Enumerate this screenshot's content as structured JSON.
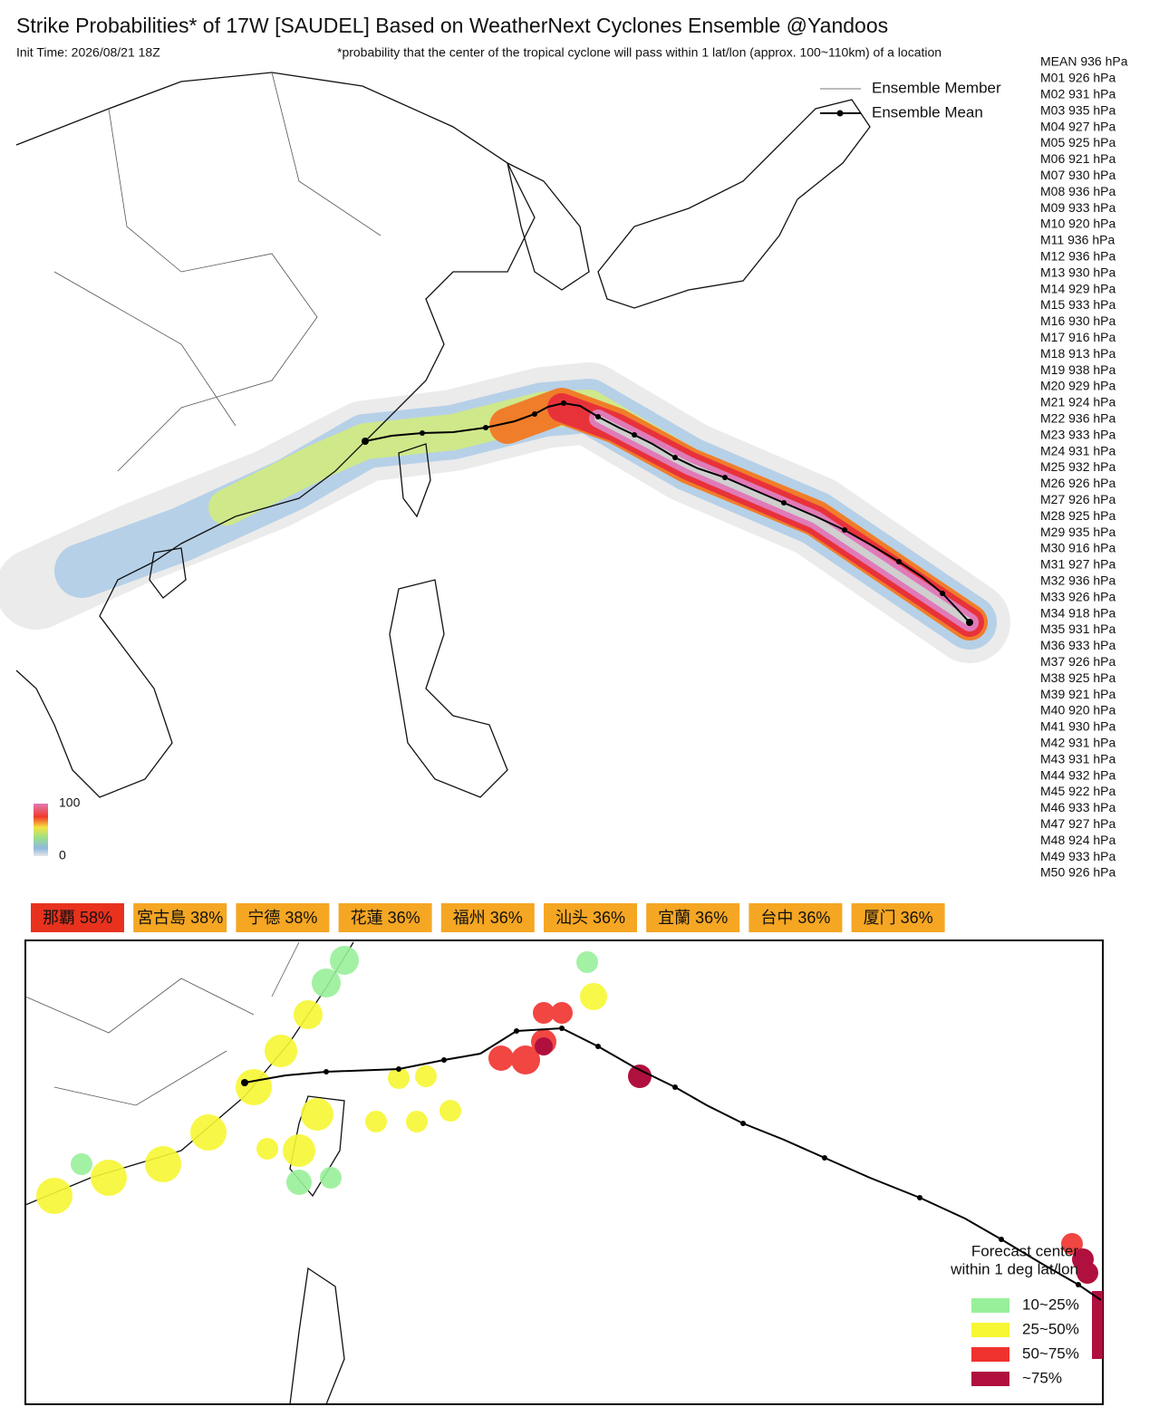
{
  "header": {
    "title": "Strike Probabilities* of 17W [SAUDEL] Based on WeatherNext Cyclones Ensemble  @Yandoos",
    "init_time": "Init Time: 2026/08/21 18Z",
    "note": "*probability that the center of the tropical cyclone will pass within 1 lat/lon (approx. 100~110km) of a location"
  },
  "map_legend": {
    "member": "Ensemble Member",
    "mean": "Ensemble Mean"
  },
  "colorbar": {
    "max_label": "100",
    "min_label": "0"
  },
  "members": [
    {
      "label": "MEAN 936 hPa",
      "color": "#c2305a"
    },
    {
      "label": "M01 926 hPa",
      "color": "#4a2777"
    },
    {
      "label": "M02 931 hPa",
      "color": "#c2305a"
    },
    {
      "label": "M03 935 hPa",
      "color": "#c2305a"
    },
    {
      "label": "M04 927 hPa",
      "color": "#4a2777"
    },
    {
      "label": "M05 925 hPa",
      "color": "#4a2777"
    },
    {
      "label": "M06 921 hPa",
      "color": "#4a2777"
    },
    {
      "label": "M07 930 hPa",
      "color": "#c2305a"
    },
    {
      "label": "M08 936 hPa",
      "color": "#c2305a"
    },
    {
      "label": "M09 933 hPa",
      "color": "#c2305a"
    },
    {
      "label": "M10 920 hPa",
      "color": "#4a2777"
    },
    {
      "label": "M11 936 hPa",
      "color": "#c2305a"
    },
    {
      "label": "M12 936 hPa",
      "color": "#c2305a"
    },
    {
      "label": "M13 930 hPa",
      "color": "#c2305a"
    },
    {
      "label": "M14 929 hPa",
      "color": "#4a2777"
    },
    {
      "label": "M15 933 hPa",
      "color": "#c2305a"
    },
    {
      "label": "M16 930 hPa",
      "color": "#c2305a"
    },
    {
      "label": "M17 916 hPa",
      "color": "#4a2777"
    },
    {
      "label": "M18 913 hPa",
      "color": "#4a2777"
    },
    {
      "label": "M19 938 hPa",
      "color": "#c2305a"
    },
    {
      "label": "M20 929 hPa",
      "color": "#4a2777"
    },
    {
      "label": "M21 924 hPa",
      "color": "#4a2777"
    },
    {
      "label": "M22 936 hPa",
      "color": "#c2305a"
    },
    {
      "label": "M23 933 hPa",
      "color": "#c2305a"
    },
    {
      "label": "M24 931 hPa",
      "color": "#c2305a"
    },
    {
      "label": "M25 932 hPa",
      "color": "#c2305a"
    },
    {
      "label": "M26 926 hPa",
      "color": "#4a2777"
    },
    {
      "label": "M27 926 hPa",
      "color": "#4a2777"
    },
    {
      "label": "M28 925 hPa",
      "color": "#4a2777"
    },
    {
      "label": "M29 935 hPa",
      "color": "#c2305a"
    },
    {
      "label": "M30 916 hPa",
      "color": "#4a2777"
    },
    {
      "label": "M31 927 hPa",
      "color": "#4a2777"
    },
    {
      "label": "M32 936 hPa",
      "color": "#c2305a"
    },
    {
      "label": "M33 926 hPa",
      "color": "#4a2777"
    },
    {
      "label": "M34 918 hPa",
      "color": "#4a2777"
    },
    {
      "label": "M35 931 hPa",
      "color": "#c2305a"
    },
    {
      "label": "M36 933 hPa",
      "color": "#c2305a"
    },
    {
      "label": "M37 926 hPa",
      "color": "#4a2777"
    },
    {
      "label": "M38 925 hPa",
      "color": "#4a2777"
    },
    {
      "label": "M39 921 hPa",
      "color": "#4a2777"
    },
    {
      "label": "M40 920 hPa",
      "color": "#4a2777"
    },
    {
      "label": "M41 930 hPa",
      "color": "#c2305a"
    },
    {
      "label": "M42 931 hPa",
      "color": "#c2305a"
    },
    {
      "label": "M43 931 hPa",
      "color": "#c2305a"
    },
    {
      "label": "M44 932 hPa",
      "color": "#c2305a"
    },
    {
      "label": "M45 922 hPa",
      "color": "#4a2777"
    },
    {
      "label": "M46 933 hPa",
      "color": "#c2305a"
    },
    {
      "label": "M47 927 hPa",
      "color": "#4a2777"
    },
    {
      "label": "M48 924 hPa",
      "color": "#4a2777"
    },
    {
      "label": "M49 933 hPa",
      "color": "#c2305a"
    },
    {
      "label": "M50 926 hPa",
      "color": "#4a2777"
    }
  ],
  "badges": [
    {
      "label": "那覇  58%",
      "color": "#e8321e"
    },
    {
      "label": "宮古島  38%",
      "color": "#f5a623"
    },
    {
      "label": "宁德  38%",
      "color": "#f5a623"
    },
    {
      "label": "花蓮  36%",
      "color": "#f5a623"
    },
    {
      "label": "福州  36%",
      "color": "#f5a623"
    },
    {
      "label": "汕头  36%",
      "color": "#f5a623"
    },
    {
      "label": "宜蘭  36%",
      "color": "#f5a623"
    },
    {
      "label": "台中  36%",
      "color": "#f5a623"
    },
    {
      "label": "厦门  36%",
      "color": "#f5a623"
    }
  ],
  "lower_legend": {
    "title_line1": "Forecast center",
    "title_line2": "within 1 deg lat/lon",
    "items": [
      {
        "label": "10~25%",
        "color": "#98f09a"
      },
      {
        "label": "25~50%",
        "color": "#f7f734"
      },
      {
        "label": "50~75%",
        "color": "#f0322e"
      },
      {
        "label": "~75%",
        "color": "#b0103e"
      }
    ]
  }
}
